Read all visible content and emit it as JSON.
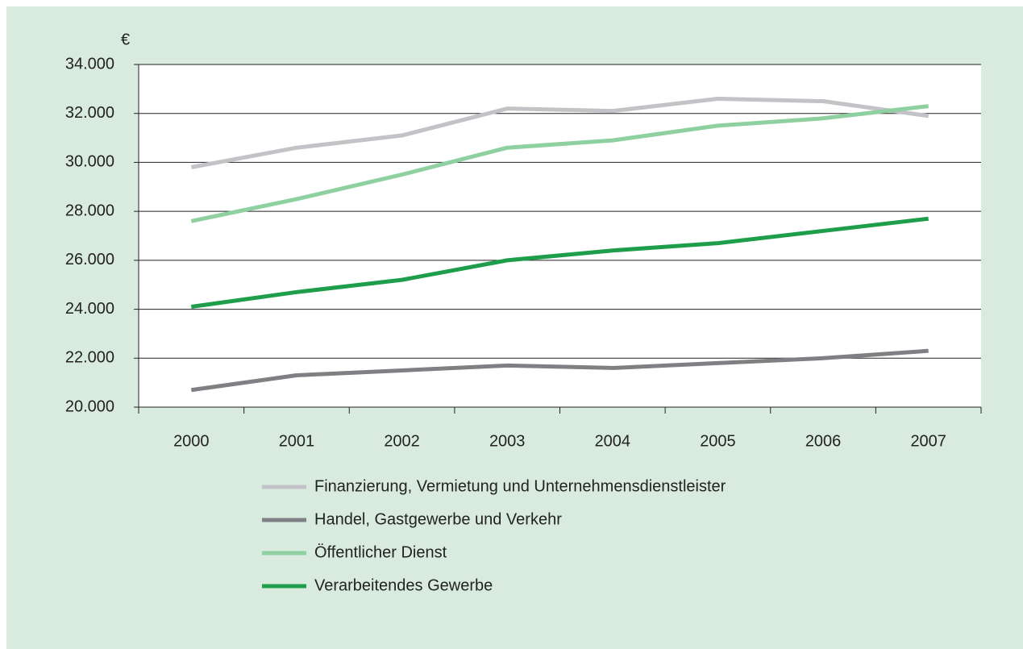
{
  "chart_data": {
    "type": "line",
    "y_label": "€",
    "categories": [
      "2000",
      "2001",
      "2002",
      "2003",
      "2004",
      "2005",
      "2006",
      "2007"
    ],
    "series": [
      {
        "name": "Finanzierung, Vermietung und Unternehmensdienstleister",
        "color": "#c3c3c7",
        "values": [
          29800,
          30600,
          31100,
          32200,
          32100,
          32600,
          32500,
          31900
        ]
      },
      {
        "name": "Handel, Gastgewerbe und Verkehr",
        "color": "#808084",
        "values": [
          20700,
          21300,
          21500,
          21700,
          21600,
          21800,
          22000,
          22300
        ]
      },
      {
        "name": "Öffentlicher Dienst",
        "color": "#8ed0a0",
        "values": [
          27600,
          28500,
          29500,
          30600,
          30900,
          31500,
          31800,
          32300
        ]
      },
      {
        "name": "Verarbeitendes Gewerbe",
        "color": "#1e9e4a",
        "values": [
          24100,
          24700,
          25200,
          26000,
          26400,
          26700,
          27200,
          27700
        ]
      }
    ],
    "ylim": [
      20000,
      34000
    ],
    "yticks": [
      {
        "value": 20000,
        "label": "20.000"
      },
      {
        "value": 22000,
        "label": "22.000"
      },
      {
        "value": 24000,
        "label": "24.000"
      },
      {
        "value": 26000,
        "label": "26.000"
      },
      {
        "value": 28000,
        "label": "28.000"
      },
      {
        "value": 30000,
        "label": "30.000"
      },
      {
        "value": 32000,
        "label": "32.000"
      },
      {
        "value": 34000,
        "label": "34.000"
      }
    ],
    "grid": true
  }
}
